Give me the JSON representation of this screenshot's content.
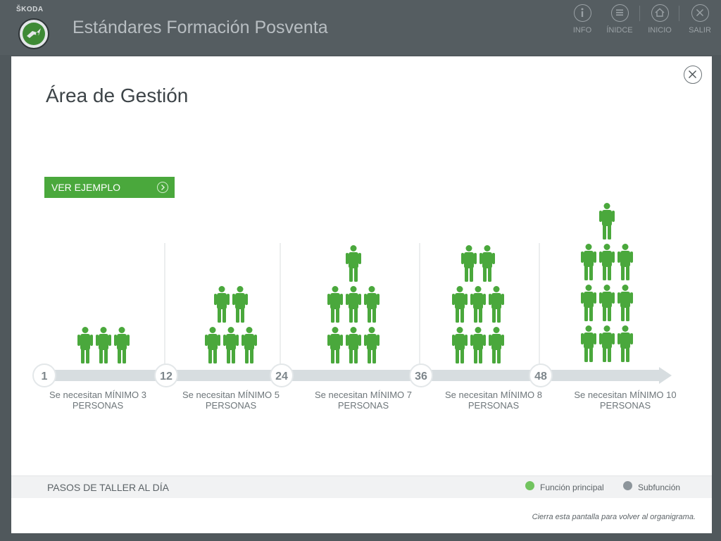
{
  "header": {
    "brand": "ŠKODA",
    "title": "Estándares Formación Posventa",
    "nav": [
      {
        "label": "INFO",
        "icon": "info-icon"
      },
      {
        "label": "ÍNIDCE",
        "icon": "index-icon"
      },
      {
        "label": "INICIO",
        "icon": "home-icon"
      },
      {
        "label": "SALIR",
        "icon": "exit-icon"
      }
    ]
  },
  "modal": {
    "title": "Área de Gestión",
    "example_button": "VER EJEMPLO",
    "close_icon": "close-icon"
  },
  "chart_data": {
    "type": "pictogram",
    "milestones": [
      "1",
      "12",
      "24",
      "36",
      "48"
    ],
    "groups": [
      {
        "people": 3,
        "caption_line1": "Se necesitan MÍNIMO 3",
        "caption_line2": "PERSONAS"
      },
      {
        "people": 5,
        "caption_line1": "Se necesitan MÍNIMO 5",
        "caption_line2": "PERSONAS"
      },
      {
        "people": 7,
        "caption_line1": "Se necesitan MÍNIMO 7",
        "caption_line2": "PERSONAS"
      },
      {
        "people": 8,
        "caption_line1": "Se necesitan MÍNIMO 8",
        "caption_line2": "PERSONAS"
      },
      {
        "people": 10,
        "caption_line1": "Se necesitan MÍNIMO 10",
        "caption_line2": "PERSONAS"
      }
    ],
    "person_color": "#4aa83c",
    "track_color": "#d7dde0"
  },
  "footer": {
    "title": "PASOS DE TALLER AL DÍA",
    "legend": [
      {
        "label": "Función principal",
        "color": "#72c45f"
      },
      {
        "label": "Subfunción",
        "color": "#8d959b"
      }
    ],
    "note": "Cierra esta pantalla para volver al organigrama."
  }
}
